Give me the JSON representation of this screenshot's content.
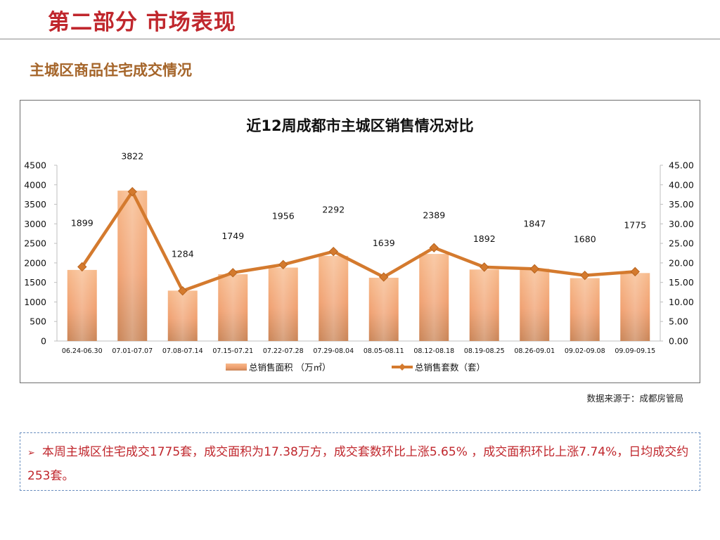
{
  "header": {
    "title": "第二部分 市场表现"
  },
  "section": {
    "title": "主城区商品住宅成交情况"
  },
  "chart_data": {
    "type": "bar+line",
    "title": "近12周成都市主城区销售情况对比",
    "categories": [
      "06.24-06.30",
      "07.01-07.07",
      "07.08-07.14",
      "07.15-07.21",
      "07.22-07.28",
      "07.29-08.04",
      "08.05-08.11",
      "08.12-08.18",
      "08.19-08.25",
      "08.26-09.01",
      "09.02-09.08",
      "09.09-09.15"
    ],
    "series": [
      {
        "name": "总销售面积 （万㎡）",
        "type": "bar",
        "axis": "right",
        "values": [
          18.2,
          38.5,
          12.9,
          17.1,
          18.8,
          21.8,
          16.2,
          22.3,
          18.3,
          18.5,
          16.1,
          17.4
        ]
      },
      {
        "name": "总销售套数（套）",
        "type": "line",
        "axis": "left",
        "values": [
          1899,
          3822,
          1284,
          1749,
          1956,
          2292,
          1639,
          2389,
          1892,
          1847,
          1680,
          1775
        ]
      }
    ],
    "data_labels": [
      "1899",
      "3822",
      "1284",
      "1749",
      "1956",
      "2292",
      "1639",
      "2389",
      "1892",
      "1847",
      "1680",
      "1775"
    ],
    "y_left": {
      "min": 0,
      "max": 4500,
      "ticks": [
        "0",
        "500",
        "1000",
        "1500",
        "2000",
        "2500",
        "3000",
        "3500",
        "4000",
        "4500"
      ]
    },
    "y_right": {
      "min": 0,
      "max": 45,
      "ticks": [
        "0.00",
        "5.00",
        "10.00",
        "15.00",
        "20.00",
        "25.00",
        "30.00",
        "35.00",
        "40.00",
        "45.00"
      ]
    },
    "legend_position": "bottom",
    "grid": false,
    "colors": {
      "bar": "#f0a070",
      "line": "#d47a2e"
    }
  },
  "source": "数据来源于：成都房管局",
  "summary": {
    "bullet": "➢",
    "text": "本周主城区住宅成交1775套，成交面积为17.38万方，成交套数环比上涨5.65% ，成交面积环比上涨7.74%，日均成交约253套。"
  }
}
